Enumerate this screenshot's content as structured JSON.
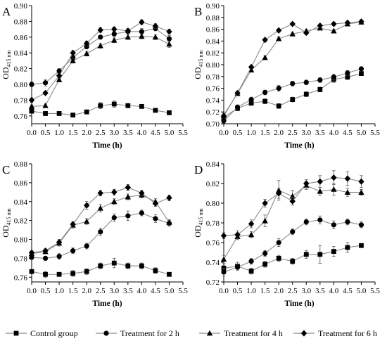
{
  "figure": {
    "legend": [
      {
        "label": "Control group",
        "marker": "square"
      },
      {
        "label": "Treatment for 2 h",
        "marker": "circle"
      },
      {
        "label": "Treatment for 4 h",
        "marker": "triangle"
      },
      {
        "label": "Treatment for 6 h",
        "marker": "diamond"
      }
    ],
    "colors": {
      "line": "#8a8a8a",
      "marker": "#000000",
      "axis": "#000000"
    }
  },
  "chart_data": [
    {
      "type": "line",
      "panel_label": "A",
      "xlabel": "Time (h)",
      "ylabel": {
        "base": "OD",
        "sub": "415 nm"
      },
      "xlim": [
        0,
        5.5
      ],
      "ylim": [
        0.75,
        0.9
      ],
      "x_ticks": [
        "0.0",
        "0.5",
        "1.0",
        "1.5",
        "2.0",
        "2.5",
        "3.0",
        "3.5",
        "4.0",
        "4.5",
        "5.0",
        "5.5"
      ],
      "y_ticks": [
        "0.76",
        "0.78",
        "0.80",
        "0.82",
        "0.84",
        "0.86",
        "0.88",
        "0.90"
      ],
      "x": [
        0,
        0.5,
        1,
        1.5,
        2,
        2.5,
        3,
        3.5,
        4,
        4.5,
        5
      ],
      "series": [
        {
          "name": "Control group",
          "marker": "square",
          "values": [
            0.766,
            0.763,
            0.763,
            0.761,
            0.765,
            0.773,
            0.775,
            0.773,
            0.772,
            0.767,
            0.764
          ],
          "errors": [
            0.002,
            0.002,
            0.002,
            0.001,
            0.002,
            0.004,
            0.004,
            0.002,
            0.002,
            0.002,
            0.002
          ]
        },
        {
          "name": "Treatment for 2 h",
          "marker": "circle",
          "values": [
            0.8,
            0.802,
            0.817,
            0.834,
            0.848,
            0.86,
            0.864,
            0.867,
            0.867,
            0.871,
            0.858
          ],
          "errors": [
            0.003,
            0.004,
            0.003,
            0.003,
            0.003,
            0.002,
            0.003,
            0.002,
            0.004,
            0.003,
            0.004
          ]
        },
        {
          "name": "Treatment for 4 h",
          "marker": "triangle",
          "values": [
            0.772,
            0.773,
            0.806,
            0.83,
            0.839,
            0.849,
            0.856,
            0.86,
            0.861,
            0.86,
            0.851
          ],
          "errors": [
            0.002,
            0.002,
            0.003,
            0.003,
            0.003,
            0.003,
            0.003,
            0.003,
            0.003,
            0.003,
            0.004
          ]
        },
        {
          "name": "Treatment for 6 h",
          "marker": "diamond",
          "values": [
            0.78,
            0.789,
            0.811,
            0.84,
            0.852,
            0.869,
            0.87,
            0.868,
            0.879,
            0.874,
            0.867
          ],
          "errors": [
            0.003,
            0.002,
            0.003,
            0.003,
            0.003,
            0.003,
            0.003,
            0.003,
            0.003,
            0.003,
            0.003
          ]
        }
      ]
    },
    {
      "type": "line",
      "panel_label": "B",
      "xlabel": "Time (h)",
      "ylabel": {
        "base": "OD",
        "sub": "415 nm"
      },
      "xlim": [
        0,
        5.5
      ],
      "ylim": [
        0.7,
        0.9
      ],
      "x_ticks": [
        "0.0",
        "0.5",
        "1.0",
        "1.5",
        "2.0",
        "2.5",
        "3.0",
        "3.5",
        "4.0",
        "4.5",
        "5.0",
        "5.5"
      ],
      "y_ticks": [
        "0.70",
        "0.72",
        "0.74",
        "0.76",
        "0.78",
        "0.80",
        "0.82",
        "0.84",
        "0.86",
        "0.88",
        "0.90"
      ],
      "x": [
        0,
        0.5,
        1,
        1.5,
        2,
        2.5,
        3,
        3.5,
        4,
        4.5,
        5
      ],
      "series": [
        {
          "name": "Control group",
          "marker": "square",
          "values": [
            0.711,
            0.726,
            0.735,
            0.738,
            0.73,
            0.741,
            0.75,
            0.758,
            0.775,
            0.779,
            0.785
          ],
          "errors": [
            0.004,
            0.004,
            0.004,
            0.004,
            0.004,
            0.004,
            0.004,
            0.004,
            0.005,
            0.004,
            0.003
          ]
        },
        {
          "name": "Treatment for 2 h",
          "marker": "circle",
          "values": [
            0.705,
            0.728,
            0.741,
            0.753,
            0.76,
            0.768,
            0.77,
            0.774,
            0.779,
            0.786,
            0.793
          ],
          "errors": [
            0.004,
            0.004,
            0.004,
            0.004,
            0.005,
            0.004,
            0.004,
            0.004,
            0.005,
            0.004,
            0.003
          ]
        },
        {
          "name": "Treatment for 4 h",
          "marker": "triangle",
          "values": [
            0.715,
            0.751,
            0.791,
            0.812,
            0.844,
            0.852,
            0.857,
            0.862,
            0.857,
            0.869,
            0.872
          ],
          "errors": [
            0.003,
            0.003,
            0.003,
            0.003,
            0.003,
            0.003,
            0.003,
            0.003,
            0.003,
            0.003,
            0.003
          ]
        },
        {
          "name": "Treatment for 6 h",
          "marker": "diamond",
          "values": [
            0.713,
            0.752,
            0.796,
            0.842,
            0.858,
            0.869,
            0.854,
            0.866,
            0.869,
            0.871,
            0.873
          ],
          "errors": [
            0.003,
            0.003,
            0.003,
            0.003,
            0.003,
            0.002,
            0.003,
            0.003,
            0.003,
            0.003,
            0.003
          ]
        }
      ]
    },
    {
      "type": "line",
      "panel_label": "C",
      "xlabel": "Time (h)",
      "ylabel": {
        "base": "OD",
        "sub": "415 nm"
      },
      "xlim": [
        0,
        5.5
      ],
      "ylim": [
        0.755,
        0.88
      ],
      "x_ticks": [
        "0.0",
        "0.5",
        "1.0",
        "1.5",
        "2.0",
        "2.5",
        "3.0",
        "3.5",
        "4.0",
        "4.5",
        "5.0",
        "5.5"
      ],
      "y_ticks": [
        "0.76",
        "0.78",
        "0.80",
        "0.82",
        "0.84",
        "0.86",
        "0.88"
      ],
      "x": [
        0,
        0.5,
        1,
        1.5,
        2,
        2.5,
        3,
        3.5,
        4,
        4.5,
        5
      ],
      "series": [
        {
          "name": "Control group",
          "marker": "square",
          "values": [
            0.766,
            0.763,
            0.763,
            0.764,
            0.766,
            0.772,
            0.775,
            0.772,
            0.772,
            0.767,
            0.763
          ],
          "errors": [
            0.002,
            0.003,
            0.002,
            0.003,
            0.003,
            0.003,
            0.005,
            0.003,
            0.003,
            0.003,
            0.002
          ]
        },
        {
          "name": "Treatment for 2 h",
          "marker": "circle",
          "values": [
            0.781,
            0.78,
            0.782,
            0.788,
            0.793,
            0.808,
            0.823,
            0.825,
            0.828,
            0.822,
            0.817
          ],
          "errors": [
            0.002,
            0.002,
            0.003,
            0.003,
            0.003,
            0.004,
            0.004,
            0.005,
            0.003,
            0.004,
            0.003
          ]
        },
        {
          "name": "Treatment for 4 h",
          "marker": "triangle",
          "values": [
            0.785,
            0.787,
            0.796,
            0.815,
            0.819,
            0.833,
            0.84,
            0.845,
            0.847,
            0.84,
            0.818
          ],
          "errors": [
            0.002,
            0.002,
            0.003,
            0.003,
            0.003,
            0.004,
            0.003,
            0.003,
            0.003,
            0.003,
            0.003
          ]
        },
        {
          "name": "Treatment for 6 h",
          "marker": "diamond",
          "values": [
            0.786,
            0.788,
            0.797,
            0.816,
            0.836,
            0.849,
            0.85,
            0.855,
            0.849,
            0.838,
            0.844
          ],
          "errors": [
            0.002,
            0.002,
            0.003,
            0.003,
            0.004,
            0.003,
            0.003,
            0.003,
            0.003,
            0.003,
            0.003
          ]
        }
      ]
    },
    {
      "type": "line",
      "panel_label": "D",
      "xlabel": "Time (h)",
      "ylabel": {
        "base": "OD",
        "sub": "415 nm"
      },
      "xlim": [
        0,
        5.5
      ],
      "ylim": [
        0.72,
        0.84
      ],
      "x_ticks": [
        "0.0",
        "0.5",
        "1.0",
        "1.5",
        "2.0",
        "2.5",
        "3.0",
        "3.5",
        "4.0",
        "4.5",
        "5.0",
        "5.5"
      ],
      "y_ticks": [
        "0.72",
        "0.74",
        "0.76",
        "0.78",
        "0.80",
        "0.82",
        "0.84"
      ],
      "x": [
        0,
        0.5,
        1,
        1.5,
        2,
        2.5,
        3,
        3.5,
        4,
        4.5,
        5
      ],
      "series": [
        {
          "name": "Control group",
          "marker": "square",
          "values": [
            0.734,
            0.736,
            0.731,
            0.738,
            0.744,
            0.741,
            0.748,
            0.748,
            0.751,
            0.755,
            0.757
          ],
          "errors": [
            0.003,
            0.004,
            0.003,
            0.003,
            0.003,
            0.003,
            0.004,
            0.009,
            0.005,
            0.005,
            0.002
          ]
        },
        {
          "name": "Treatment for 2 h",
          "marker": "circle",
          "values": [
            0.73,
            0.735,
            0.741,
            0.749,
            0.76,
            0.771,
            0.781,
            0.783,
            0.778,
            0.781,
            0.778
          ],
          "errors": [
            0.004,
            0.003,
            0.003,
            0.003,
            0.004,
            0.003,
            0.003,
            0.004,
            0.004,
            0.003,
            0.003
          ]
        },
        {
          "name": "Treatment for 4 h",
          "marker": "triangle",
          "values": [
            0.743,
            0.766,
            0.768,
            0.782,
            0.813,
            0.807,
            0.818,
            0.812,
            0.814,
            0.811,
            0.811
          ],
          "errors": [
            0.004,
            0.003,
            0.003,
            0.006,
            0.01,
            0.006,
            0.004,
            0.004,
            0.006,
            0.004,
            0.003
          ]
        },
        {
          "name": "Treatment for 6 h",
          "marker": "diamond",
          "values": [
            0.767,
            0.768,
            0.779,
            0.8,
            0.81,
            0.802,
            0.82,
            0.822,
            0.826,
            0.825,
            0.822
          ],
          "errors": [
            0.003,
            0.004,
            0.004,
            0.004,
            0.005,
            0.004,
            0.004,
            0.006,
            0.007,
            0.007,
            0.006
          ]
        }
      ]
    }
  ]
}
